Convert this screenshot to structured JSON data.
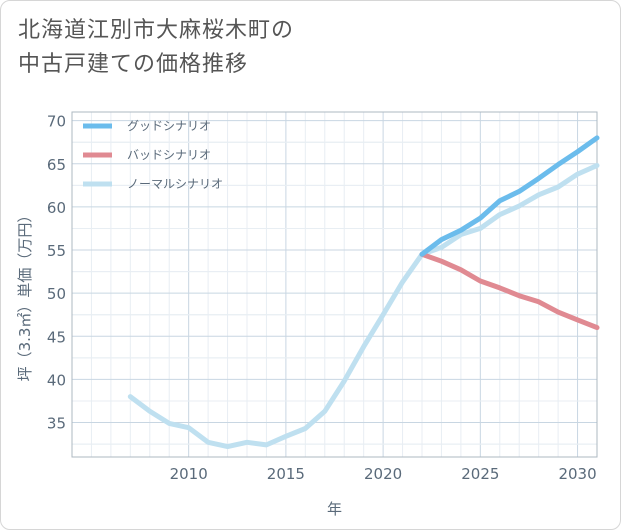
{
  "title_lines": [
    "北海道江別市大麻桜木町の",
    "中古戸建ての価格推移"
  ],
  "chart_data": {
    "type": "line",
    "xlabel": "年",
    "ylabel": "坪（3.3㎡）単価（万円）",
    "xlim": [
      2004,
      2031
    ],
    "ylim": [
      31,
      71
    ],
    "x_ticks": [
      2010,
      2015,
      2020,
      2025,
      2030
    ],
    "y_ticks": [
      35,
      40,
      45,
      50,
      55,
      60,
      65,
      70
    ],
    "grid": true,
    "legend_position": "top-left",
    "series": [
      {
        "name": "グッドシナリオ",
        "color": "#6bbcec",
        "x": [
          2022,
          2023,
          2024,
          2025,
          2026,
          2027,
          2028,
          2029,
          2030,
          2031
        ],
        "y": [
          54.5,
          56.2,
          57.3,
          58.7,
          60.7,
          61.8,
          63.3,
          64.9,
          66.4,
          68.0
        ]
      },
      {
        "name": "バッドシナリオ",
        "color": "#e08a92",
        "x": [
          2022,
          2023,
          2024,
          2025,
          2026,
          2027,
          2028,
          2029,
          2030,
          2031
        ],
        "y": [
          54.5,
          53.7,
          52.7,
          51.4,
          50.6,
          49.7,
          49.0,
          47.8,
          46.9,
          46.0
        ]
      },
      {
        "name": "ノーマルシナリオ",
        "color": "#bfe0f0",
        "x": [
          2007,
          2008,
          2009,
          2010,
          2011,
          2012,
          2013,
          2014,
          2015,
          2016,
          2017,
          2018,
          2019,
          2020,
          2021,
          2022,
          2023,
          2024,
          2025,
          2026,
          2027,
          2028,
          2029,
          2030,
          2031
        ],
        "y": [
          38.0,
          36.3,
          34.9,
          34.4,
          32.7,
          32.2,
          32.7,
          32.4,
          33.4,
          34.3,
          36.3,
          39.8,
          43.8,
          47.5,
          51.3,
          54.5,
          55.3,
          56.8,
          57.5,
          59.1,
          60.1,
          61.4,
          62.3,
          63.8,
          64.8
        ]
      }
    ]
  }
}
